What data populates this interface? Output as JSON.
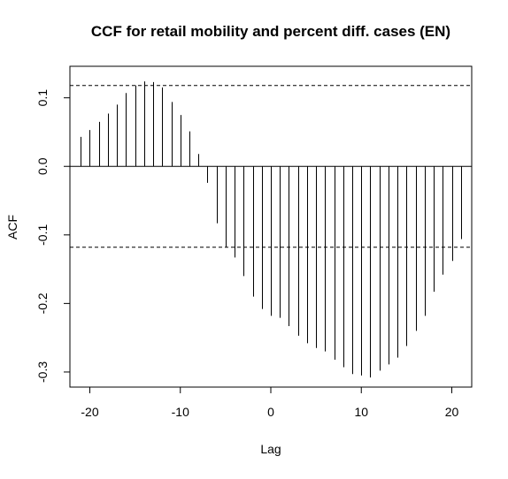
{
  "chart_data": {
    "type": "bar",
    "title": "CCF for retail mobility and percent diff. cases (EN)",
    "xlabel": "Lag",
    "ylabel": "ACF",
    "xlim": [
      -22.2,
      22.2
    ],
    "ylim": [
      -0.322,
      0.146
    ],
    "x_ticks": [
      -20,
      -10,
      0,
      10,
      20
    ],
    "y_ticks": [
      -0.3,
      -0.2,
      -0.1,
      0.0,
      0.1
    ],
    "x_tick_labels": [
      "-20",
      "-10",
      "0",
      "10",
      "20"
    ],
    "y_tick_labels": [
      "-0.3",
      "-0.2",
      "-0.1",
      "0.0",
      "0.1"
    ],
    "confidence_bound": 0.118,
    "grid": false,
    "legend": "none",
    "lags": [
      -21,
      -20,
      -19,
      -18,
      -17,
      -16,
      -15,
      -14,
      -13,
      -12,
      -11,
      -10,
      -9,
      -8,
      -7,
      -6,
      -5,
      -4,
      -3,
      -2,
      -1,
      0,
      1,
      2,
      3,
      4,
      5,
      6,
      7,
      8,
      9,
      10,
      11,
      12,
      13,
      14,
      15,
      16,
      17,
      18,
      19,
      20,
      21
    ],
    "values": [
      0.043,
      0.053,
      0.065,
      0.077,
      0.09,
      0.107,
      0.118,
      0.124,
      0.123,
      0.115,
      0.094,
      0.075,
      0.051,
      0.018,
      -0.024,
      -0.083,
      -0.118,
      -0.133,
      -0.16,
      -0.19,
      -0.208,
      -0.218,
      -0.221,
      -0.233,
      -0.247,
      -0.258,
      -0.265,
      -0.27,
      -0.282,
      -0.293,
      -0.303,
      -0.305,
      -0.308,
      -0.298,
      -0.289,
      -0.279,
      -0.262,
      -0.24,
      -0.218,
      -0.183,
      -0.158,
      -0.138,
      -0.106
    ]
  }
}
